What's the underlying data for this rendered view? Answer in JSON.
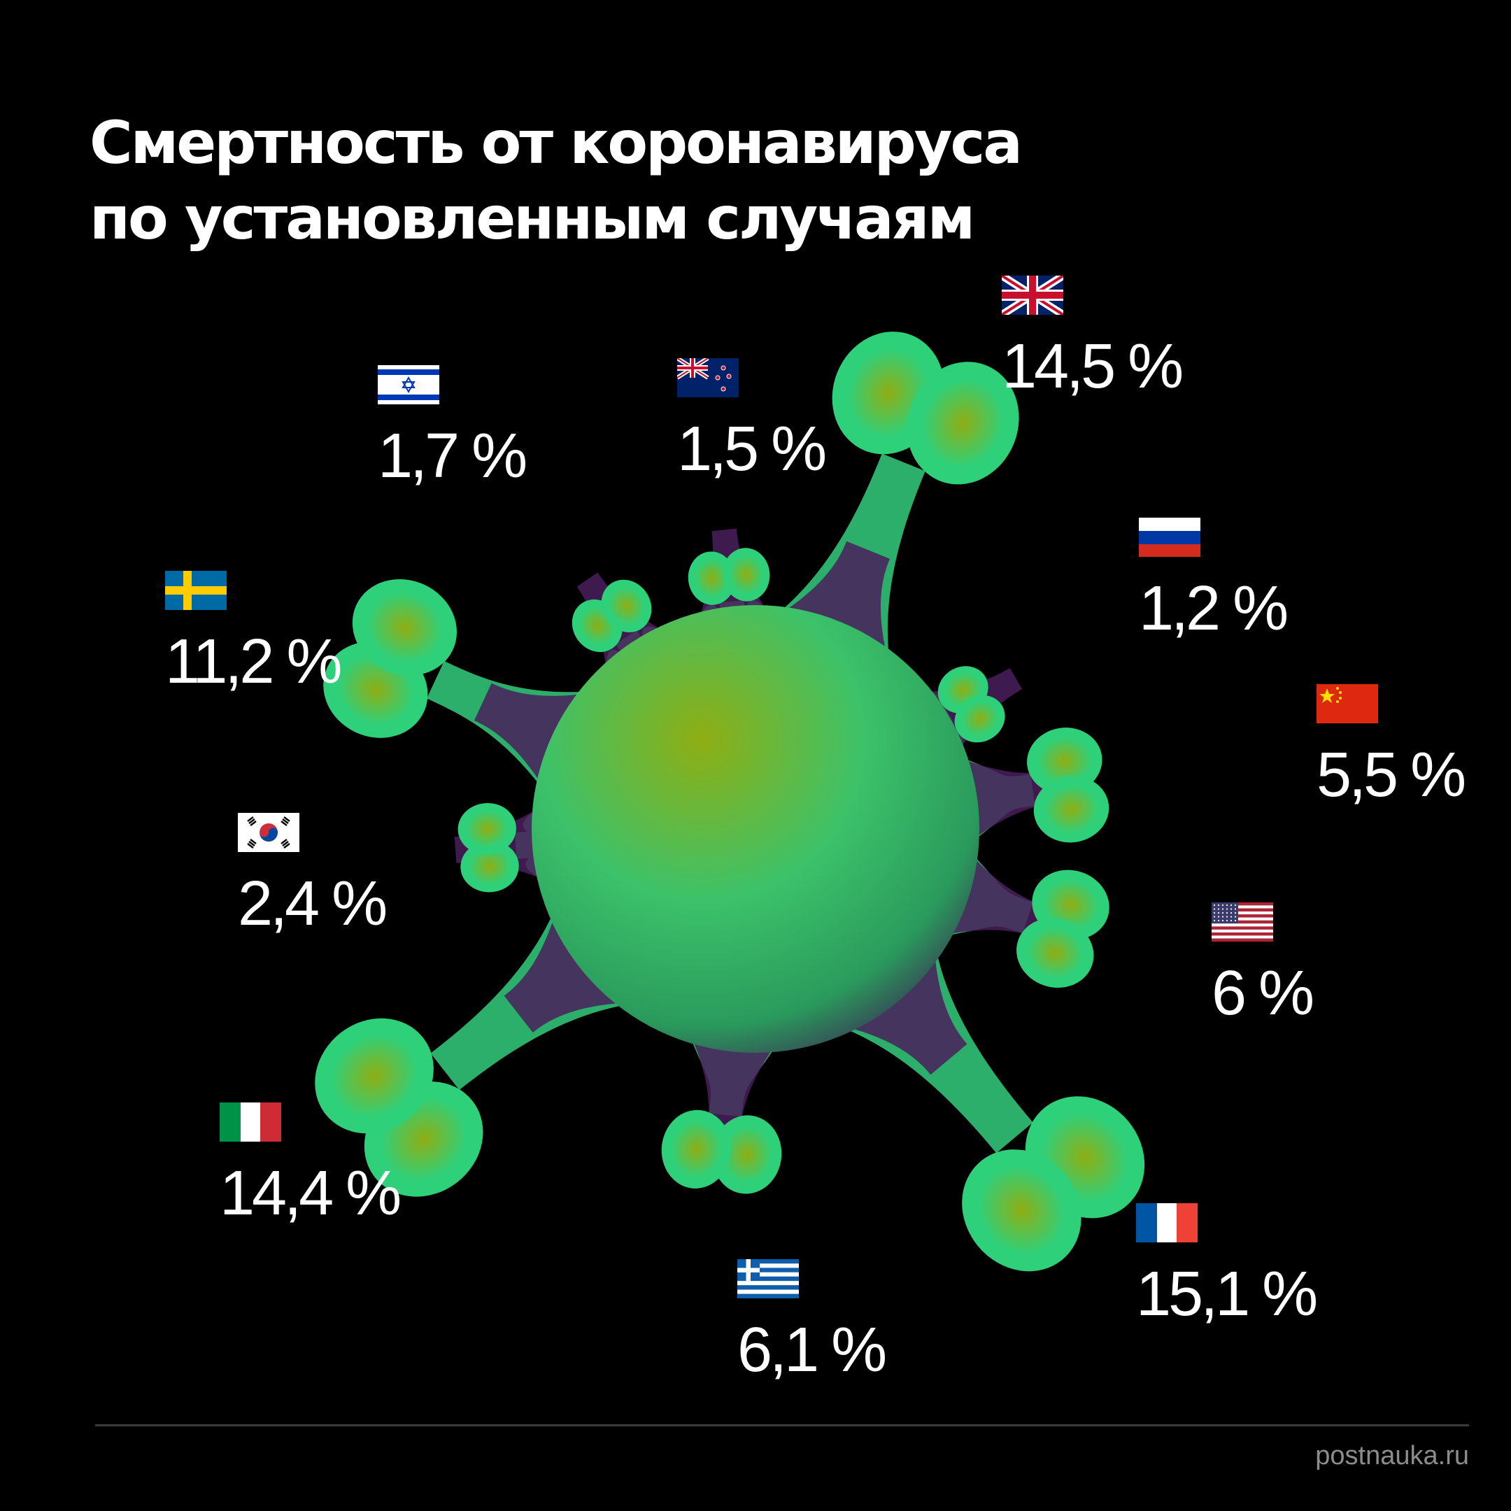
{
  "chart_data": {
    "type": "other",
    "title_lines": [
      "Смертность от коронавируса",
      "по установленным случаям"
    ],
    "unit": "%",
    "items": [
      {
        "country": "Великобритания",
        "flag_icon": "flag-uk",
        "value": 14.5,
        "label": "14,5 %"
      },
      {
        "country": "Новая Зеландия",
        "flag_icon": "flag-new-zealand",
        "value": 1.5,
        "label": "1,5 %"
      },
      {
        "country": "Израиль",
        "flag_icon": "flag-israel",
        "value": 1.7,
        "label": "1,7 %"
      },
      {
        "country": "Швеция",
        "flag_icon": "flag-sweden",
        "value": 11.2,
        "label": "11,2 %"
      },
      {
        "country": "Южная Корея",
        "flag_icon": "flag-south-korea",
        "value": 2.4,
        "label": "2,4 %"
      },
      {
        "country": "Италия",
        "flag_icon": "flag-italy",
        "value": 14.4,
        "label": "14,4 %"
      },
      {
        "country": "Греция",
        "flag_icon": "flag-greece",
        "value": 6.1,
        "label": "6,1 %"
      },
      {
        "country": "Франция",
        "flag_icon": "flag-france",
        "value": 15.1,
        "label": "15,1 %"
      },
      {
        "country": "США",
        "flag_icon": "flag-usa",
        "value": 6,
        "label": "6 %"
      },
      {
        "country": "Китай",
        "flag_icon": "flag-china",
        "value": 5.5,
        "label": "5,5 %"
      },
      {
        "country": "Россия",
        "flag_icon": "flag-russia",
        "value": 1.2,
        "label": "1,2 %"
      }
    ]
  },
  "footer": {
    "source": "postnauka.ru"
  },
  "colors": {
    "background": "#000000",
    "virus_green": "#2fd07a",
    "virus_yellow": "#8fae14",
    "virus_purple": "#4a1f5c",
    "text": "#ffffff",
    "source_text": "#8c8c8c"
  }
}
